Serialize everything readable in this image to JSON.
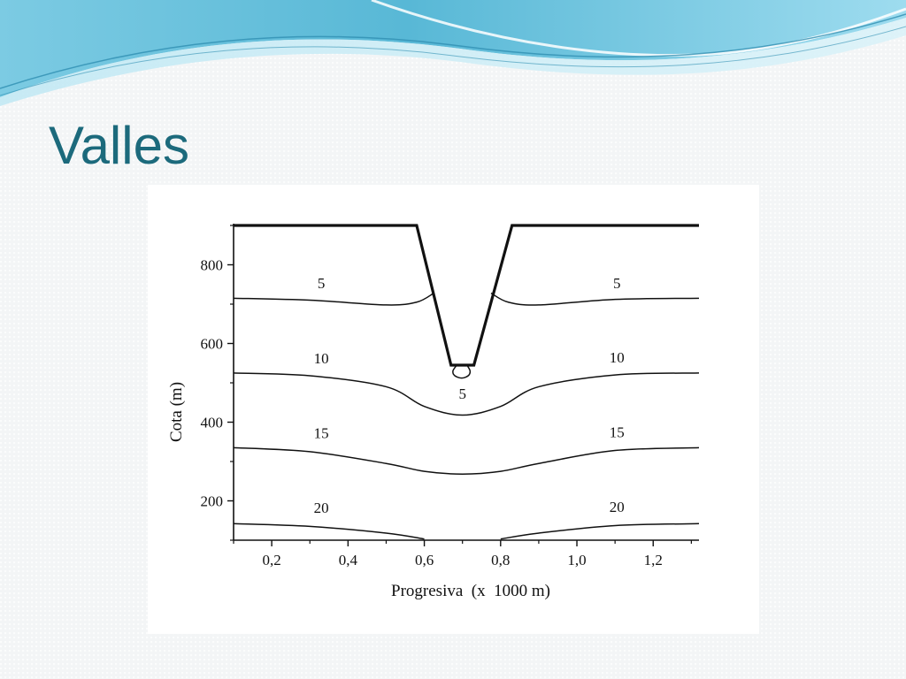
{
  "slide": {
    "title": "Valles",
    "colors": {
      "title": "#1c6a7c",
      "wave_dark": "#3fa3c4",
      "wave_light": "#a8dfee",
      "background": "#f3f5f6"
    }
  },
  "chart_data": {
    "type": "contour",
    "xlabel": "Progresiva  (x  1000 m)",
    "ylabel": "Cota (m)",
    "xlim": [
      0.1,
      1.32
    ],
    "ylim": [
      100,
      900
    ],
    "xticks": [
      0.2,
      0.4,
      0.6,
      0.8,
      1.0,
      1.2
    ],
    "xtick_labels": [
      "0,2",
      "0,4",
      "0,6",
      "0,8",
      "1,0",
      "1,2"
    ],
    "yticks": [
      200,
      400,
      600,
      800
    ],
    "ytick_labels": [
      "200",
      "400",
      "600",
      "800"
    ],
    "grid": false,
    "valley_profile": {
      "x": [
        0.1,
        0.58,
        0.67,
        0.73,
        0.83,
        1.32
      ],
      "y": [
        900,
        900,
        545,
        545,
        900,
        900
      ]
    },
    "contours": [
      {
        "level": "5",
        "segments": [
          {
            "x": [
              0.1,
              0.3,
              0.5,
              0.58,
              0.625
            ],
            "y": [
              715,
              710,
              698,
              705,
              728
            ]
          },
          {
            "x": [
              0.775,
              0.82,
              0.9,
              1.1,
              1.32
            ],
            "y": [
              728,
              705,
              698,
              712,
              715
            ]
          },
          {
            "x": [
              0.685,
              0.675,
              0.68,
              0.698,
              0.715,
              0.72,
              0.712
            ],
            "y": [
              545,
              530,
              518,
              512,
              518,
              530,
              545
            ]
          }
        ],
        "labels": [
          {
            "text": "5",
            "x": 0.33,
            "y": 740
          },
          {
            "text": "5",
            "x": 1.105,
            "y": 740
          },
          {
            "text": "5",
            "x": 0.7,
            "y": 460
          }
        ]
      },
      {
        "level": "10",
        "segments": [
          {
            "x": [
              0.1,
              0.3,
              0.5,
              0.6,
              0.7,
              0.8,
              0.9,
              1.1,
              1.32
            ],
            "y": [
              525,
              518,
              490,
              440,
              418,
              440,
              490,
              520,
              525
            ]
          }
        ],
        "labels": [
          {
            "text": "10",
            "x": 0.33,
            "y": 550
          },
          {
            "text": "10",
            "x": 1.105,
            "y": 552
          }
        ]
      },
      {
        "level": "15",
        "segments": [
          {
            "x": [
              0.1,
              0.3,
              0.5,
              0.6,
              0.7,
              0.8,
              0.9,
              1.1,
              1.32
            ],
            "y": [
              335,
              325,
              295,
              275,
              268,
              275,
              295,
              328,
              335
            ]
          }
        ],
        "labels": [
          {
            "text": "15",
            "x": 0.33,
            "y": 360
          },
          {
            "text": "15",
            "x": 1.105,
            "y": 362
          }
        ]
      },
      {
        "level": "20",
        "segments": [
          {
            "x": [
              0.1,
              0.3,
              0.5,
              0.6
            ],
            "y": [
              142,
              135,
              118,
              103
            ]
          },
          {
            "x": [
              0.8,
              0.9,
              1.1,
              1.32
            ],
            "y": [
              103,
              118,
              137,
              142
            ]
          }
        ],
        "labels": [
          {
            "text": "20",
            "x": 0.33,
            "y": 170
          },
          {
            "text": "20",
            "x": 1.105,
            "y": 172
          }
        ]
      }
    ]
  }
}
